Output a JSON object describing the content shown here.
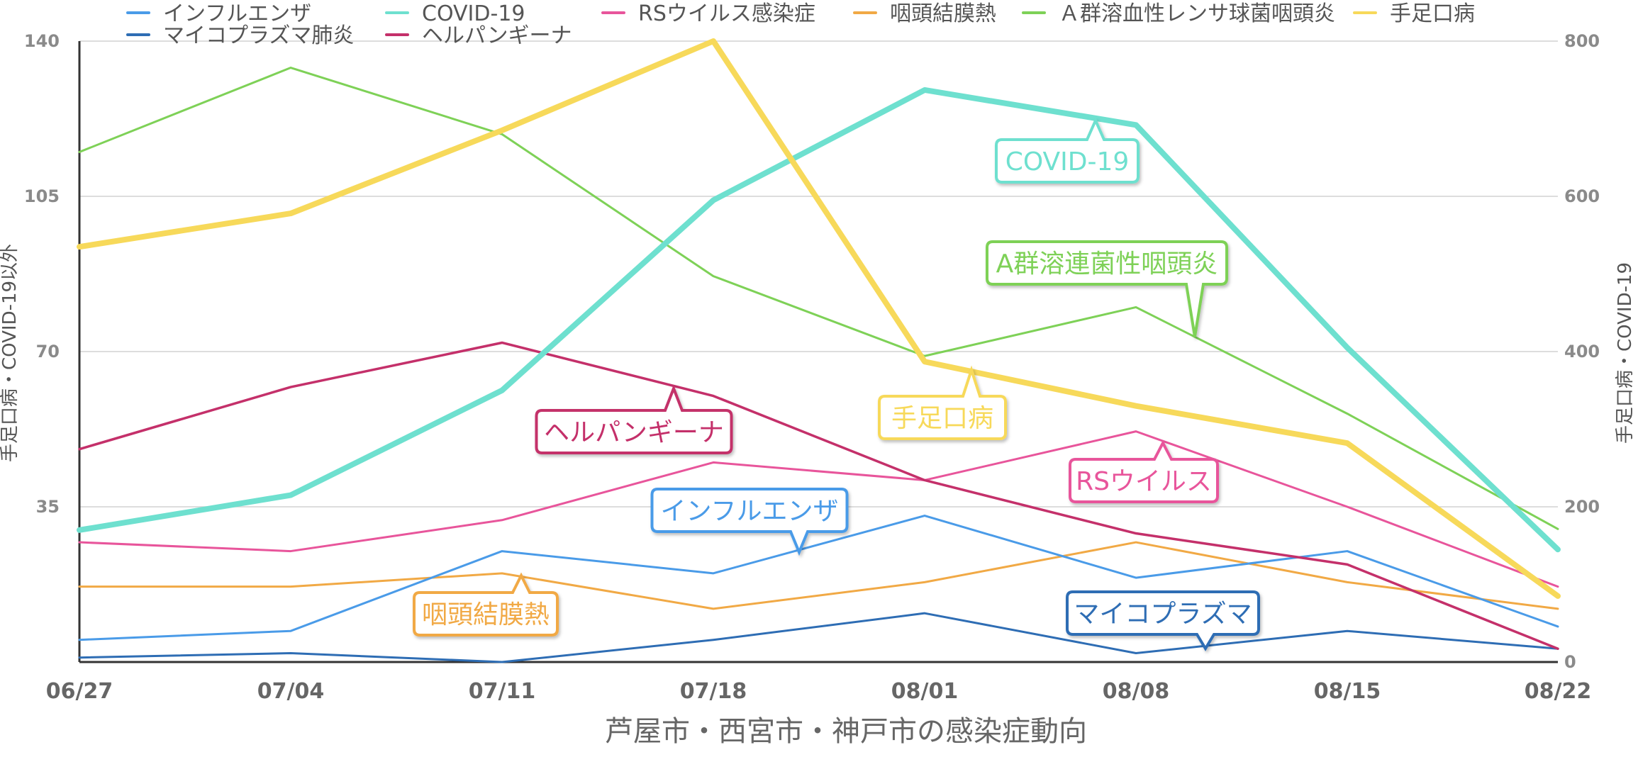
{
  "chart_data": {
    "type": "line",
    "title": "",
    "xlabel": "芦屋市・西宮市・神戸市の感染症動向",
    "ylabel_left": "手足口病・COVID-19以外",
    "ylabel_right": "手足口病・COVID-19",
    "ylim_left": [
      0,
      140
    ],
    "ylim_right": [
      0,
      800
    ],
    "yticks_left": [
      35,
      70,
      105,
      140
    ],
    "yticks_right": [
      0,
      200,
      400,
      600,
      800
    ],
    "categories": [
      "06/27",
      "07/04",
      "07/11",
      "07/18",
      "08/01",
      "08/08",
      "08/15",
      "08/22"
    ],
    "grid": true,
    "legend_position": "top",
    "series": [
      {
        "name": "インフルエンザ",
        "axis": "left",
        "color": "#4a9be8",
        "values": [
          5,
          7,
          25,
          20,
          33,
          19,
          25,
          8
        ]
      },
      {
        "name": "マイコプラズマ肺炎",
        "axis": "left",
        "color": "#2e6db4",
        "values": [
          1,
          2,
          0,
          5,
          11,
          2,
          7,
          3
        ]
      },
      {
        "name": "COVID-19",
        "axis": "right",
        "color": "#6ee0cf",
        "values": [
          170,
          215,
          350,
          595,
          737,
          692,
          405,
          145
        ]
      },
      {
        "name": "ヘルパンギーナ",
        "axis": "left",
        "color": "#c4306a",
        "values": [
          48,
          62,
          72,
          60,
          41,
          29,
          22,
          3
        ]
      },
      {
        "name": "RSウイルス感染症",
        "axis": "left",
        "color": "#e8559b",
        "values": [
          27,
          25,
          32,
          45,
          41,
          52,
          35,
          17
        ]
      },
      {
        "name": "咽頭結膜熱",
        "axis": "left",
        "color": "#f1a945",
        "values": [
          17,
          17,
          20,
          12,
          18,
          27,
          18,
          12
        ]
      },
      {
        "name": "Ａ群溶血性レンサ球菌咽頭炎",
        "axis": "left",
        "color": "#7ed157",
        "values": [
          115,
          134,
          119,
          87,
          69,
          80,
          56,
          30
        ]
      },
      {
        "name": "手足口病",
        "axis": "right",
        "color": "#f7d95a",
        "values": [
          535,
          578,
          685,
          800,
          387,
          330,
          282,
          85
        ]
      }
    ],
    "annotations": [
      {
        "text": "COVID-19",
        "series": "COVID-19",
        "color": "#6ee0cf"
      },
      {
        "text": "A群溶連菌性咽頭炎",
        "series": "Ａ群溶血性レンサ球菌咽頭炎",
        "color": "#7ed157"
      },
      {
        "text": "ヘルパンギーナ",
        "series": "ヘルパンギーナ",
        "color": "#c4306a"
      },
      {
        "text": "手足口病",
        "series": "手足口病",
        "color": "#f7d95a"
      },
      {
        "text": "RSウイルス",
        "series": "RSウイルス感染症",
        "color": "#e8559b"
      },
      {
        "text": "インフルエンザ",
        "series": "インフルエンザ",
        "color": "#4a9be8"
      },
      {
        "text": "咽頭結膜熱",
        "series": "咽頭結膜熱",
        "color": "#f1a945"
      },
      {
        "text": "マイコプラズマ",
        "series": "マイコプラズマ肺炎",
        "color": "#2e6db4"
      }
    ]
  }
}
